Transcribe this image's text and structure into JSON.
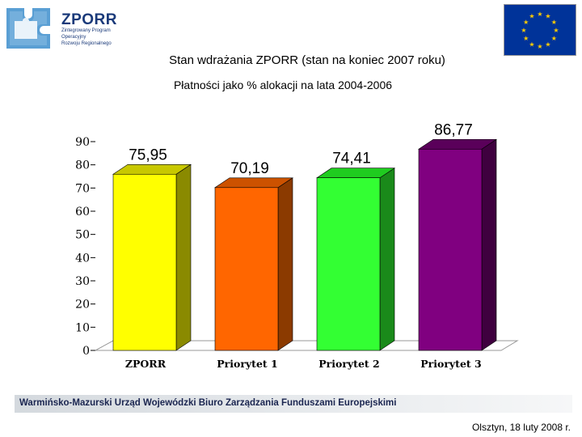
{
  "header": {
    "logo_title": "ZPORR",
    "logo_sub_lines": [
      "Zintegrowany Program",
      "Operacyjny",
      "Rozwoju Regionalnego"
    ]
  },
  "title": "Stan wdrażania  ZPORR (stan na koniec 2007 roku)",
  "subtitle": "Płatności  jako % alokacji na lata 2004-2006",
  "chart_data": {
    "type": "bar",
    "categories": [
      "ZPORR",
      "Priorytet 1",
      "Priorytet 2",
      "Priorytet 3"
    ],
    "values": [
      75.95,
      70.19,
      74.41,
      86.77
    ],
    "data_labels": [
      "75,95",
      "70,19",
      "74,41",
      "86,77"
    ],
    "colors": [
      "#ffff00",
      "#ff6600",
      "#33ff33",
      "#800080"
    ],
    "side_colors": [
      "#8a8a00",
      "#8b3a00",
      "#1a8a1a",
      "#3f003f"
    ],
    "top_colors": [
      "#c8c800",
      "#cc5200",
      "#1fcc1f",
      "#5a005a"
    ],
    "ylim": [
      0,
      90
    ],
    "yticks": [
      "0",
      "10",
      "20",
      "30",
      "40",
      "50",
      "60",
      "70",
      "80",
      "90"
    ],
    "ytick_values": [
      0,
      10,
      20,
      30,
      40,
      50,
      60,
      70,
      80,
      90
    ],
    "grid": false
  },
  "footer": {
    "org": "Warmińsko-Mazurski Urząd Wojewódzki Biuro Zarządzania Funduszami Europejskimi",
    "place_date": "Olsztyn, 18 luty 2008 r."
  }
}
